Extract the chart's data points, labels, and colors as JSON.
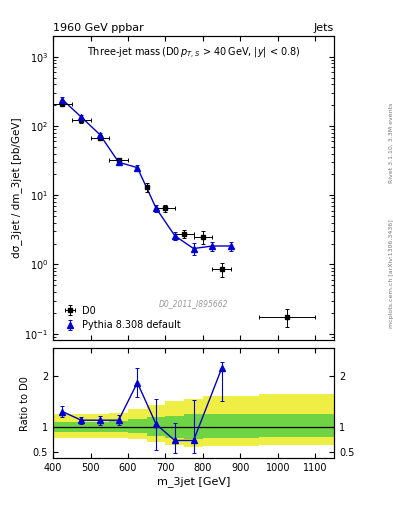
{
  "title_top": "1960 GeV ppbar",
  "title_top_right": "Jets",
  "plot_title": "Three-jet mass (D0 p_{T,S} > 40 GeV, |y| < 0.8)",
  "xlabel": "m_3jet [GeV]",
  "ylabel_main": "dσ_3jet / dm_3jet [pb/GeV]",
  "ylabel_ratio": "Ratio to D0",
  "watermark": "D0_2011_I895662",
  "right_label_top": "Rivet 3.1.10, 3.3M events",
  "right_label_bot": "mcplots.cern.ch [arXiv:1306.3436]",
  "d0_x": [
    425,
    475,
    525,
    575,
    650,
    700,
    750,
    800,
    850,
    1025
  ],
  "d0_y": [
    210,
    120,
    68,
    32,
    13,
    6.5,
    2.8,
    2.5,
    0.85,
    0.175
  ],
  "d0_xerr": [
    25,
    25,
    25,
    25,
    0,
    25,
    25,
    25,
    25,
    75
  ],
  "d0_yerr_lo": [
    12,
    8,
    5,
    3,
    2,
    0.8,
    0.4,
    0.5,
    0.2,
    0.05
  ],
  "d0_yerr_hi": [
    12,
    8,
    5,
    3,
    2,
    0.8,
    0.4,
    0.5,
    0.2,
    0.05
  ],
  "pythia_x": [
    425,
    475,
    525,
    575,
    625,
    675,
    725,
    775,
    825,
    875
  ],
  "pythia_y": [
    240,
    135,
    75,
    30,
    25,
    6.5,
    2.6,
    1.7,
    1.85,
    1.85
  ],
  "pythia_yerr_lo": [
    18,
    10,
    5,
    2.5,
    2,
    0.7,
    0.35,
    0.35,
    0.28,
    0.28
  ],
  "pythia_yerr_hi": [
    18,
    10,
    5,
    2.5,
    2,
    0.7,
    0.35,
    0.35,
    0.28,
    0.28
  ],
  "ratio_x": [
    425,
    475,
    525,
    575,
    625,
    675,
    725,
    775,
    850
  ],
  "ratio_y": [
    1.3,
    1.13,
    1.13,
    1.13,
    1.87,
    1.05,
    0.73,
    0.73,
    2.15
  ],
  "ratio_yerr_lo": [
    0.1,
    0.07,
    0.09,
    0.1,
    0.28,
    0.5,
    0.25,
    0.25,
    0.65
  ],
  "ratio_yerr_hi": [
    0.1,
    0.07,
    0.09,
    0.1,
    0.28,
    0.5,
    0.35,
    0.8,
    0.12
  ],
  "band_x_edges": [
    400,
    450,
    500,
    550,
    600,
    650,
    700,
    750,
    800,
    950,
    1150
  ],
  "band_green_lo": [
    0.9,
    0.9,
    0.9,
    0.9,
    0.88,
    0.82,
    0.78,
    0.75,
    0.78,
    0.8,
    0.8
  ],
  "band_green_hi": [
    1.1,
    1.1,
    1.1,
    1.12,
    1.15,
    1.2,
    1.22,
    1.25,
    1.25,
    1.25,
    1.25
  ],
  "band_yellow_lo": [
    0.78,
    0.78,
    0.78,
    0.78,
    0.75,
    0.7,
    0.65,
    0.6,
    0.62,
    0.65,
    0.65
  ],
  "band_yellow_hi": [
    1.25,
    1.25,
    1.25,
    1.28,
    1.35,
    1.42,
    1.5,
    1.55,
    1.6,
    1.65,
    1.65
  ],
  "main_color": "#0000cc",
  "d0_color": "#000000",
  "d0_marker": "s",
  "pythia_marker": "^",
  "bg_color": "#ffffff",
  "xlim": [
    400,
    1150
  ],
  "ylim_main": [
    0.08,
    2000
  ],
  "ylim_ratio": [
    0.38,
    2.55
  ]
}
